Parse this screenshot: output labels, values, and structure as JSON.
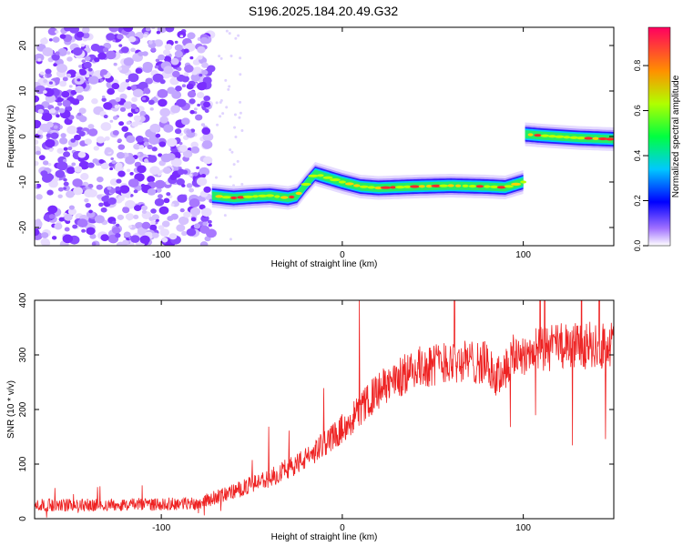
{
  "title": "S196.2025.184.20.49.G32",
  "chart_data": [
    {
      "type": "heatmap",
      "xlabel": "Height of straight line (km)",
      "ylabel": "Frequency (Hz)",
      "xlim": [
        -170,
        150
      ],
      "ylim": [
        -24,
        24
      ],
      "xticks": [
        -100,
        0,
        100
      ],
      "yticks": [
        20,
        10,
        0,
        -10,
        -20
      ],
      "colorbar": {
        "label": "Normalized spectral amplitude",
        "range": [
          0,
          0.97
        ],
        "ticks": [
          0.0,
          0.2,
          0.4,
          0.6,
          0.8
        ]
      },
      "noise_region_x": [
        -170,
        -72
      ],
      "signal_track": [
        {
          "x": -72,
          "y": -13.0
        },
        {
          "x": -60,
          "y": -13.5
        },
        {
          "x": -50,
          "y": -13.2
        },
        {
          "x": -40,
          "y": -13.0
        },
        {
          "x": -30,
          "y": -13.5
        },
        {
          "x": -25,
          "y": -13.0
        },
        {
          "x": -20,
          "y": -10.5
        },
        {
          "x": -15,
          "y": -8.2
        },
        {
          "x": -10,
          "y": -8.8
        },
        {
          "x": 0,
          "y": -10.0
        },
        {
          "x": 10,
          "y": -11.0
        },
        {
          "x": 20,
          "y": -11.3
        },
        {
          "x": 40,
          "y": -11.0
        },
        {
          "x": 60,
          "y": -10.8
        },
        {
          "x": 80,
          "y": -11.0
        },
        {
          "x": 90,
          "y": -11.2
        },
        {
          "x": 100,
          "y": -10.0
        },
        {
          "x": 101,
          "y": 0.5
        },
        {
          "x": 110,
          "y": 0.2
        },
        {
          "x": 130,
          "y": -0.3
        },
        {
          "x": 150,
          "y": -0.6
        }
      ]
    },
    {
      "type": "line",
      "xlabel": "Height of straight line (km)",
      "ylabel": "SNR (10 * v/v)",
      "xlim": [
        -170,
        150
      ],
      "ylim": [
        0,
        400
      ],
      "xticks": [
        -100,
        0,
        100
      ],
      "yticks": [
        0,
        100,
        200,
        300,
        400
      ],
      "series": [
        {
          "color": "#ee2222",
          "trend": [
            {
              "x": -170,
              "y": 25
            },
            {
              "x": -130,
              "y": 25
            },
            {
              "x": -80,
              "y": 28
            },
            {
              "x": -60,
              "y": 50
            },
            {
              "x": -40,
              "y": 75
            },
            {
              "x": -20,
              "y": 110
            },
            {
              "x": 0,
              "y": 165
            },
            {
              "x": 20,
              "y": 235
            },
            {
              "x": 40,
              "y": 275
            },
            {
              "x": 60,
              "y": 290
            },
            {
              "x": 80,
              "y": 285
            },
            {
              "x": 85,
              "y": 255
            },
            {
              "x": 95,
              "y": 300
            },
            {
              "x": 120,
              "y": 315
            },
            {
              "x": 150,
              "y": 320
            }
          ]
        }
      ]
    }
  ]
}
